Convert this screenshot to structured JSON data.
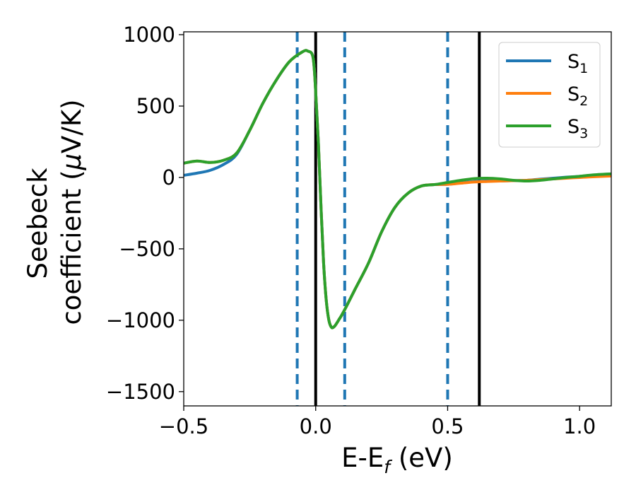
{
  "chart_data": {
    "type": "line",
    "xlabel": {
      "main": "E-E",
      "sub": "f",
      "unit": " (eV)"
    },
    "ylabel": {
      "line1": "Seebeck",
      "line2": "coefficient  (",
      "mu": "μ",
      "line2_end": "V/K)"
    },
    "xlim": [
      -0.5,
      1.12
    ],
    "ylim": [
      -1600,
      1020
    ],
    "xticks": [
      -0.5,
      0.0,
      0.5,
      1.0
    ],
    "xtick_labels": [
      "−0.5",
      "0.0",
      "0.5",
      "1.0"
    ],
    "yticks": [
      1000,
      500,
      0,
      -500,
      -1000,
      -1500
    ],
    "ytick_labels": [
      "1000",
      "500",
      "0",
      "−500",
      "−1000",
      "−1500"
    ],
    "grid": false,
    "legend_position": "top-right",
    "series": [
      {
        "name": "S",
        "sub": "1",
        "color": "#1f77b4",
        "x": [
          -0.5,
          -0.45,
          -0.4,
          -0.35,
          -0.3,
          -0.25,
          -0.2,
          -0.15,
          -0.1,
          -0.05,
          -0.03,
          -0.01,
          0.0,
          0.01,
          0.02,
          0.03,
          0.04,
          0.05,
          0.06,
          0.07,
          0.08,
          0.09,
          0.1,
          0.12,
          0.15,
          0.2,
          0.25,
          0.3,
          0.35,
          0.4,
          0.45,
          0.5,
          0.55,
          0.6,
          0.65,
          0.7,
          0.75,
          0.8,
          0.85,
          0.9,
          0.95,
          1.0,
          1.05,
          1.12
        ],
        "y": [
          15,
          30,
          50,
          90,
          160,
          330,
          520,
          680,
          810,
          880,
          885,
          840,
          600,
          250,
          -200,
          -600,
          -860,
          -1000,
          -1050,
          -1045,
          -1020,
          -990,
          -960,
          -890,
          -780,
          -600,
          -380,
          -210,
          -110,
          -60,
          -50,
          -48,
          -38,
          -28,
          -25,
          -25,
          -22,
          -20,
          -12,
          -5,
          2,
          8,
          15,
          25
        ]
      },
      {
        "name": "S",
        "sub": "2",
        "color": "#ff7f0e",
        "x": [
          -0.5,
          -0.45,
          -0.4,
          -0.35,
          -0.3,
          -0.25,
          -0.2,
          -0.15,
          -0.1,
          -0.05,
          -0.03,
          -0.01,
          0.0,
          0.01,
          0.02,
          0.03,
          0.04,
          0.05,
          0.06,
          0.07,
          0.08,
          0.09,
          0.1,
          0.12,
          0.15,
          0.2,
          0.25,
          0.3,
          0.35,
          0.4,
          0.45,
          0.5,
          0.55,
          0.6,
          0.65,
          0.7,
          0.75,
          0.8,
          0.85,
          0.9,
          0.95,
          1.0,
          1.05,
          1.12
        ],
        "y": [
          100,
          115,
          105,
          120,
          170,
          330,
          520,
          680,
          810,
          880,
          885,
          840,
          600,
          250,
          -200,
          -600,
          -860,
          -1000,
          -1050,
          -1045,
          -1020,
          -990,
          -960,
          -890,
          -780,
          -600,
          -380,
          -210,
          -110,
          -60,
          -50,
          -48,
          -40,
          -32,
          -28,
          -25,
          -22,
          -20,
          -15,
          -10,
          -5,
          0,
          5,
          10
        ]
      },
      {
        "name": "S",
        "sub": "3",
        "color": "#2ca02c",
        "x": [
          -0.5,
          -0.45,
          -0.4,
          -0.35,
          -0.3,
          -0.25,
          -0.2,
          -0.15,
          -0.1,
          -0.05,
          -0.03,
          -0.01,
          0.0,
          0.01,
          0.02,
          0.03,
          0.04,
          0.05,
          0.06,
          0.07,
          0.08,
          0.09,
          0.1,
          0.12,
          0.15,
          0.2,
          0.25,
          0.3,
          0.35,
          0.4,
          0.45,
          0.5,
          0.55,
          0.6,
          0.65,
          0.7,
          0.75,
          0.8,
          0.85,
          0.9,
          0.95,
          1.0,
          1.05,
          1.12
        ],
        "y": [
          100,
          115,
          105,
          120,
          170,
          330,
          520,
          680,
          810,
          880,
          885,
          840,
          600,
          250,
          -200,
          -600,
          -860,
          -1000,
          -1050,
          -1045,
          -1020,
          -990,
          -960,
          -890,
          -780,
          -600,
          -380,
          -210,
          -110,
          -60,
          -50,
          -35,
          -20,
          -8,
          -5,
          -10,
          -20,
          -25,
          -20,
          -10,
          0,
          8,
          18,
          25
        ]
      }
    ],
    "vlines": [
      {
        "x": -0.07,
        "style": "dashed",
        "color": "#1f77b4"
      },
      {
        "x": 0.0,
        "style": "solid",
        "color": "#000000"
      },
      {
        "x": 0.11,
        "style": "dashed",
        "color": "#1f77b4"
      },
      {
        "x": 0.5,
        "style": "dashed",
        "color": "#1f77b4"
      },
      {
        "x": 0.62,
        "style": "solid",
        "color": "#000000"
      }
    ]
  }
}
